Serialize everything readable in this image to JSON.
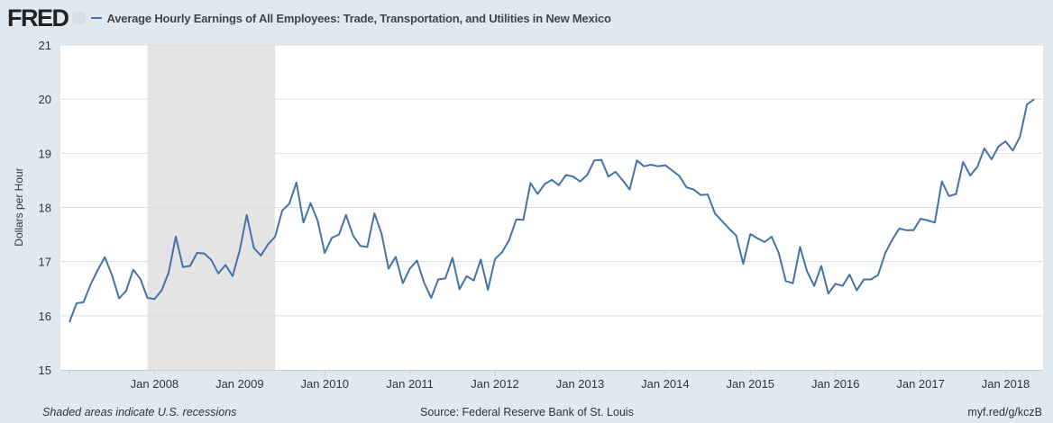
{
  "header": {
    "logo": "FRED",
    "title": "Average Hourly Earnings of All Employees: Trade, Transportation, and Utilities in New Mexico"
  },
  "footer": {
    "recession_note": "Shaded areas indicate U.S. recessions",
    "source": "Source: Federal Reserve Bank of St. Louis",
    "link": "myf.red/g/kczB"
  },
  "colors": {
    "line": "#4572a7",
    "recession": "#e4e4e4",
    "grid": "#dddddd"
  },
  "chart_data": {
    "type": "line",
    "title": "Average Hourly Earnings of All Employees: Trade, Transportation, and Utilities in New Mexico",
    "ylabel": "Dollars per Hour",
    "xlabel": "",
    "ylim": [
      15,
      21
    ],
    "yticks": [
      "15",
      "16",
      "17",
      "18",
      "19",
      "20",
      "21"
    ],
    "xticks": [
      "Jan 2008",
      "Jan 2009",
      "Jan 2010",
      "Jan 2011",
      "Jan 2012",
      "Jan 2013",
      "Jan 2014",
      "Jan 2015",
      "Jan 2016",
      "Jan 2017",
      "Jan 2018"
    ],
    "start": "2007-01",
    "frequency": "monthly",
    "recession": {
      "start": "2007-12",
      "end": "2009-06"
    },
    "series": [
      {
        "name": "Average Hourly Earnings of All Employees: Trade, Transportation, and Utilities in New Mexico",
        "values": [
          15.88,
          16.23,
          16.25,
          16.58,
          16.85,
          17.08,
          16.75,
          16.32,
          16.46,
          16.85,
          16.68,
          16.33,
          16.31,
          16.47,
          16.8,
          17.46,
          16.9,
          16.92,
          17.16,
          17.15,
          17.03,
          16.78,
          16.94,
          16.73,
          17.2,
          17.86,
          17.25,
          17.11,
          17.32,
          17.46,
          17.94,
          18.07,
          18.46,
          17.72,
          18.08,
          17.75,
          17.16,
          17.44,
          17.5,
          17.86,
          17.48,
          17.29,
          17.27,
          17.89,
          17.52,
          16.87,
          17.09,
          16.6,
          16.87,
          17.02,
          16.61,
          16.33,
          16.67,
          16.69,
          17.07,
          16.49,
          16.73,
          16.65,
          17.04,
          16.48,
          17.05,
          17.17,
          17.4,
          17.78,
          17.77,
          18.45,
          18.25,
          18.43,
          18.51,
          18.41,
          18.6,
          18.57,
          18.48,
          18.6,
          18.87,
          18.88,
          18.57,
          18.66,
          18.5,
          18.33,
          18.87,
          18.76,
          18.79,
          18.76,
          18.78,
          18.68,
          18.58,
          18.37,
          18.33,
          18.23,
          18.24,
          17.89,
          17.75,
          17.61,
          17.48,
          16.96,
          17.51,
          17.43,
          17.36,
          17.46,
          17.16,
          16.64,
          16.6,
          17.27,
          16.82,
          16.55,
          16.92,
          16.41,
          16.59,
          16.55,
          16.76,
          16.47,
          16.67,
          16.67,
          16.75,
          17.15,
          17.4,
          17.61,
          17.58,
          17.58,
          17.79,
          17.76,
          17.72,
          18.48,
          18.21,
          18.25,
          18.84,
          18.59,
          18.75,
          19.09,
          18.89,
          19.13,
          19.22,
          19.05,
          19.3,
          19.9,
          20.0
        ]
      }
    ]
  }
}
